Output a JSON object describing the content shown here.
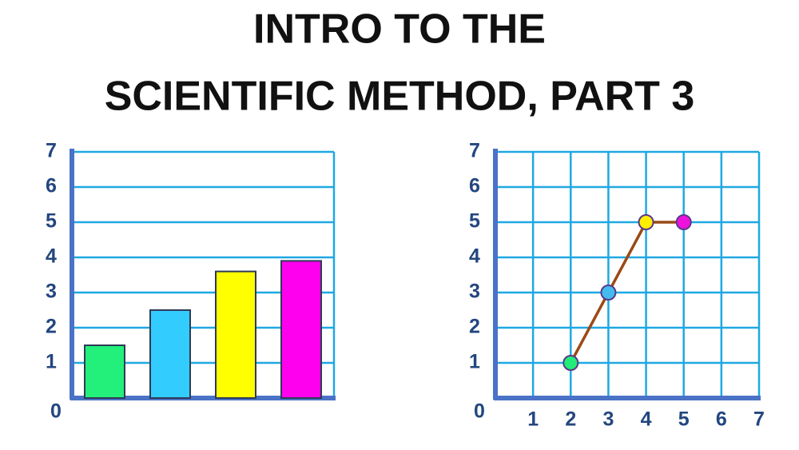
{
  "title_lines": [
    "INTRO TO THE",
    "SCIENTIFIC METHOD, PART 3"
  ],
  "chart_data": [
    {
      "type": "bar",
      "categories": [
        null,
        null,
        null,
        null
      ],
      "values": [
        1.5,
        2.5,
        3.6,
        3.9
      ],
      "colors": [
        "#22f07a",
        "#33ccff",
        "#ffff00",
        "#ff00ee"
      ],
      "ylim": [
        0,
        7
      ],
      "yticks": [
        0,
        1,
        2,
        3,
        4,
        5,
        6,
        7
      ],
      "grid": true
    },
    {
      "type": "line",
      "x": [
        2,
        3,
        4,
        5
      ],
      "series": [
        {
          "color": "#9a4a16",
          "values": [
            1,
            3,
            5,
            5
          ],
          "marker_colors": [
            "#22ee77",
            "#44bbee",
            "#ffee00",
            "#ee11dd"
          ]
        }
      ],
      "xlim": [
        0,
        7
      ],
      "xticks": [
        1,
        2,
        3,
        4,
        5,
        6,
        7
      ],
      "ylim": [
        0,
        7
      ],
      "yticks": [
        0,
        1,
        2,
        3,
        4,
        5,
        6,
        7
      ],
      "grid": true
    }
  ]
}
